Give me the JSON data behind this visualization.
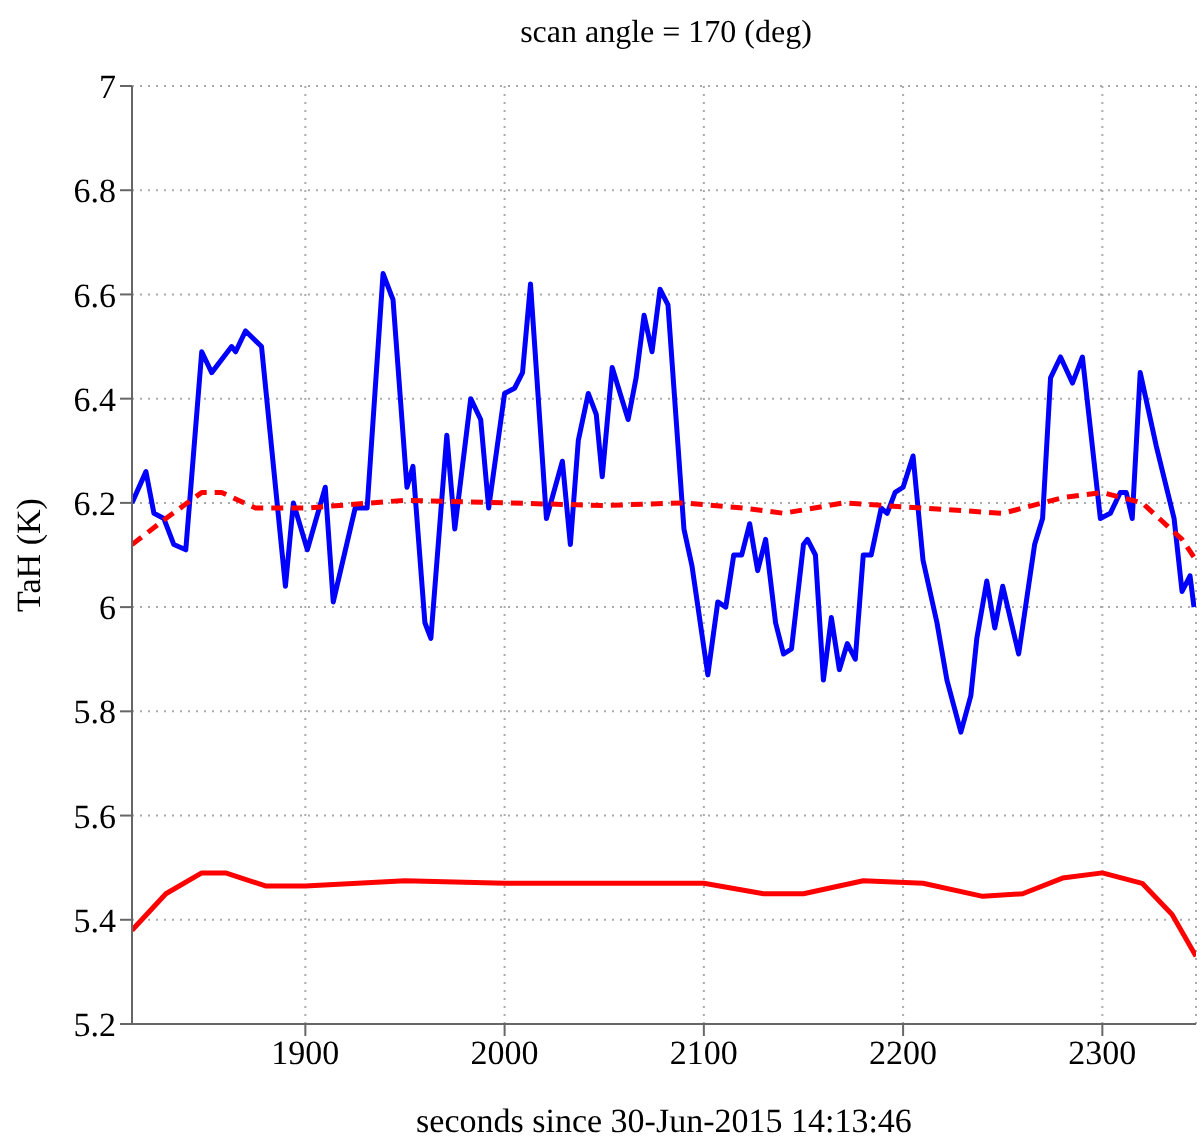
{
  "chart_data": {
    "type": "line",
    "title": "scan angle = 170 (deg)",
    "xlabel": "seconds since 30-Jun-2015 14:13:46",
    "ylabel": "TaH (K)",
    "xlim": [
      1813,
      2347
    ],
    "xticks": [
      1900,
      2000,
      2100,
      2200,
      2300
    ],
    "ylim": [
      5.2,
      7
    ],
    "yticks": [
      5.2,
      5.4,
      5.6,
      5.8,
      6,
      6.2,
      6.4,
      6.6,
      6.8,
      7
    ],
    "grid": true,
    "series": [
      {
        "color": "#0000ff",
        "line_style": "solid",
        "x": [
          1813,
          1820,
          1824,
          1829,
          1834,
          1840,
          1848,
          1853,
          1863,
          1865,
          1870,
          1878,
          1890,
          1894,
          1901,
          1910,
          1914,
          1925,
          1931,
          1939,
          1944,
          1951,
          1954,
          1960,
          1963,
          1971,
          1975,
          1983,
          1988,
          1992,
          2000,
          2005,
          2009,
          2013,
          2021,
          2029,
          2033,
          2037,
          2042,
          2046,
          2049,
          2054,
          2062,
          2066,
          2070,
          2074,
          2078,
          2082,
          2090,
          2094,
          2102,
          2107,
          2111,
          2115,
          2119,
          2123,
          2127,
          2131,
          2136,
          2140,
          2144,
          2150,
          2152,
          2156,
          2160,
          2164,
          2168,
          2172,
          2176,
          2180,
          2184,
          2189,
          2192,
          2196,
          2200,
          2205,
          2210,
          2217,
          2222,
          2229,
          2234,
          2237,
          2242,
          2246,
          2250,
          2258,
          2266,
          2270,
          2274,
          2279,
          2285,
          2290,
          2299,
          2304,
          2309,
          2312,
          2315,
          2319,
          2327,
          2336,
          2340,
          2344,
          2346
        ],
        "values": [
          6.2,
          6.26,
          6.18,
          6.17,
          6.12,
          6.11,
          6.49,
          6.45,
          6.5,
          6.49,
          6.53,
          6.5,
          6.04,
          6.2,
          6.11,
          6.23,
          6.01,
          6.19,
          6.19,
          6.64,
          6.59,
          6.23,
          6.27,
          5.97,
          5.94,
          6.33,
          6.15,
          6.4,
          6.36,
          6.19,
          6.41,
          6.42,
          6.45,
          6.62,
          6.17,
          6.28,
          6.12,
          6.32,
          6.41,
          6.37,
          6.25,
          6.46,
          6.36,
          6.44,
          6.56,
          6.49,
          6.61,
          6.58,
          6.15,
          6.08,
          5.87,
          6.01,
          6.0,
          6.1,
          6.1,
          6.16,
          6.07,
          6.13,
          5.97,
          5.91,
          5.92,
          6.12,
          6.13,
          6.1,
          5.86,
          5.98,
          5.88,
          5.93,
          5.9,
          6.1,
          6.1,
          6.19,
          6.18,
          6.22,
          6.23,
          6.29,
          6.09,
          5.97,
          5.86,
          5.76,
          5.83,
          5.94,
          6.05,
          5.96,
          6.04,
          5.91,
          6.12,
          6.17,
          6.44,
          6.48,
          6.43,
          6.48,
          6.17,
          6.18,
          6.22,
          6.22,
          6.17,
          6.45,
          6.31,
          6.17,
          6.03,
          6.06,
          6.0
        ]
      },
      {
        "color": "#ff0000",
        "line_style": "dashed",
        "x": [
          1813,
          1830,
          1848,
          1858,
          1875,
          1900,
          1950,
          2000,
          2050,
          2090,
          2120,
          2140,
          2170,
          2210,
          2250,
          2280,
          2300,
          2320,
          2340,
          2347
        ],
        "values": [
          6.12,
          6.17,
          6.22,
          6.22,
          6.19,
          6.19,
          6.205,
          6.2,
          6.195,
          6.2,
          6.19,
          6.18,
          6.2,
          6.19,
          6.18,
          6.21,
          6.22,
          6.2,
          6.13,
          6.09
        ]
      },
      {
        "color": "#ff0000",
        "line_style": "solid",
        "x": [
          1813,
          1830,
          1848,
          1860,
          1880,
          1900,
          1950,
          2000,
          2050,
          2100,
          2130,
          2150,
          2180,
          2210,
          2240,
          2260,
          2280,
          2300,
          2320,
          2335,
          2347
        ],
        "values": [
          5.38,
          5.45,
          5.49,
          5.49,
          5.465,
          5.465,
          5.475,
          5.47,
          5.47,
          5.47,
          5.45,
          5.45,
          5.475,
          5.47,
          5.445,
          5.45,
          5.48,
          5.49,
          5.47,
          5.41,
          5.33
        ]
      }
    ]
  }
}
